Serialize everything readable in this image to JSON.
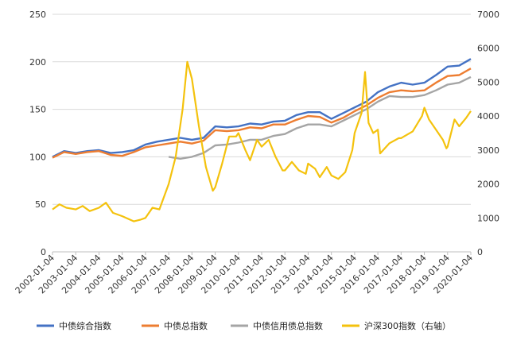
{
  "chart_data": {
    "type": "line",
    "y_left": {
      "ticks": [
        "0",
        "50",
        "100",
        "150",
        "200",
        "250"
      ],
      "lim": [
        0,
        250
      ]
    },
    "y_right": {
      "ticks": [
        "0",
        "1000",
        "2000",
        "3000",
        "4000",
        "5000",
        "6000",
        "7000"
      ],
      "lim": [
        0,
        7000
      ]
    },
    "x_ticks": [
      "2002-01-04",
      "2003-01-04",
      "2004-01-04",
      "2005-01-04",
      "2006-01-04",
      "2007-01-04",
      "2008-01-04",
      "2009-01-04",
      "2010-01-04",
      "2011-01-04",
      "2012-01-04",
      "2013-01-04",
      "2014-01-04",
      "2015-01-04",
      "2016-01-04",
      "2017-01-04",
      "2018-01-04",
      "2019-01-04",
      "2020-01-04"
    ],
    "grid": "horizontal",
    "legend_position": "bottom",
    "series": [
      {
        "name": "中债综合指数",
        "color": "#4472C4",
        "axis": "left",
        "points": [
          [
            2002.0,
            100
          ],
          [
            2002.5,
            106
          ],
          [
            2003.0,
            104
          ],
          [
            2003.5,
            106
          ],
          [
            2004.0,
            107
          ],
          [
            2004.5,
            104
          ],
          [
            2005.0,
            105
          ],
          [
            2005.5,
            107
          ],
          [
            2006.0,
            113
          ],
          [
            2006.5,
            116
          ],
          [
            2007.0,
            118
          ],
          [
            2007.5,
            120
          ],
          [
            2008.0,
            118
          ],
          [
            2008.5,
            120
          ],
          [
            2009.0,
            132
          ],
          [
            2009.5,
            131
          ],
          [
            2010.0,
            132
          ],
          [
            2010.5,
            135
          ],
          [
            2011.0,
            134
          ],
          [
            2011.5,
            137
          ],
          [
            2012.0,
            138
          ],
          [
            2012.5,
            144
          ],
          [
            2013.0,
            147
          ],
          [
            2013.5,
            147
          ],
          [
            2014.0,
            140
          ],
          [
            2014.5,
            146
          ],
          [
            2015.0,
            152
          ],
          [
            2015.5,
            158
          ],
          [
            2016.0,
            168
          ],
          [
            2016.5,
            174
          ],
          [
            2017.0,
            178
          ],
          [
            2017.5,
            176
          ],
          [
            2018.0,
            178
          ],
          [
            2018.5,
            186
          ],
          [
            2019.0,
            195
          ],
          [
            2019.5,
            196
          ],
          [
            2020.0,
            203
          ]
        ]
      },
      {
        "name": "中债总指数",
        "color": "#ED7D31",
        "axis": "left",
        "points": [
          [
            2002.0,
            99
          ],
          [
            2002.5,
            105
          ],
          [
            2003.0,
            103
          ],
          [
            2003.5,
            105
          ],
          [
            2004.0,
            106
          ],
          [
            2004.5,
            102
          ],
          [
            2005.0,
            101
          ],
          [
            2005.5,
            105
          ],
          [
            2006.0,
            110
          ],
          [
            2006.5,
            112
          ],
          [
            2007.0,
            114
          ],
          [
            2007.5,
            116
          ],
          [
            2008.0,
            114
          ],
          [
            2008.5,
            117
          ],
          [
            2009.0,
            128
          ],
          [
            2009.5,
            127
          ],
          [
            2010.0,
            128
          ],
          [
            2010.5,
            131
          ],
          [
            2011.0,
            130
          ],
          [
            2011.5,
            134
          ],
          [
            2012.0,
            134
          ],
          [
            2012.5,
            139
          ],
          [
            2013.0,
            143
          ],
          [
            2013.5,
            142
          ],
          [
            2014.0,
            136
          ],
          [
            2014.5,
            141
          ],
          [
            2015.0,
            148
          ],
          [
            2015.5,
            154
          ],
          [
            2016.0,
            162
          ],
          [
            2016.5,
            168
          ],
          [
            2017.0,
            170
          ],
          [
            2017.5,
            169
          ],
          [
            2018.0,
            170
          ],
          [
            2018.5,
            178
          ],
          [
            2019.0,
            185
          ],
          [
            2019.5,
            186
          ],
          [
            2020.0,
            193
          ]
        ]
      },
      {
        "name": "中债信用债总指数",
        "color": "#A5A5A5",
        "axis": "left",
        "points": [
          [
            2007.0,
            100
          ],
          [
            2007.5,
            98
          ],
          [
            2008.0,
            100
          ],
          [
            2008.5,
            104
          ],
          [
            2009.0,
            112
          ],
          [
            2009.5,
            113
          ],
          [
            2010.0,
            115
          ],
          [
            2010.5,
            118
          ],
          [
            2011.0,
            118
          ],
          [
            2011.5,
            122
          ],
          [
            2012.0,
            124
          ],
          [
            2012.5,
            130
          ],
          [
            2013.0,
            134
          ],
          [
            2013.5,
            134
          ],
          [
            2014.0,
            132
          ],
          [
            2014.5,
            138
          ],
          [
            2015.0,
            144
          ],
          [
            2015.5,
            150
          ],
          [
            2016.0,
            158
          ],
          [
            2016.5,
            164
          ],
          [
            2017.0,
            163
          ],
          [
            2017.5,
            163
          ],
          [
            2018.0,
            165
          ],
          [
            2018.5,
            170
          ],
          [
            2019.0,
            176
          ],
          [
            2019.5,
            178
          ],
          [
            2020.0,
            184
          ]
        ]
      },
      {
        "name": "沪深300指数（右轴）",
        "color": "#F4C20D",
        "axis": "right",
        "points": [
          [
            2002.0,
            1250
          ],
          [
            2002.3,
            1400
          ],
          [
            2002.6,
            1300
          ],
          [
            2003.0,
            1250
          ],
          [
            2003.3,
            1350
          ],
          [
            2003.6,
            1200
          ],
          [
            2004.0,
            1300
          ],
          [
            2004.3,
            1450
          ],
          [
            2004.6,
            1150
          ],
          [
            2005.0,
            1050
          ],
          [
            2005.5,
            900
          ],
          [
            2005.8,
            950
          ],
          [
            2006.0,
            1000
          ],
          [
            2006.3,
            1300
          ],
          [
            2006.6,
            1250
          ],
          [
            2007.0,
            2000
          ],
          [
            2007.3,
            2800
          ],
          [
            2007.6,
            4200
          ],
          [
            2007.8,
            5600
          ],
          [
            2008.0,
            5100
          ],
          [
            2008.3,
            3700
          ],
          [
            2008.6,
            2500
          ],
          [
            2008.9,
            1800
          ],
          [
            2009.0,
            1900
          ],
          [
            2009.3,
            2600
          ],
          [
            2009.6,
            3400
          ],
          [
            2009.9,
            3400
          ],
          [
            2010.0,
            3500
          ],
          [
            2010.3,
            3000
          ],
          [
            2010.5,
            2700
          ],
          [
            2010.8,
            3300
          ],
          [
            2011.0,
            3100
          ],
          [
            2011.3,
            3300
          ],
          [
            2011.6,
            2800
          ],
          [
            2011.9,
            2400
          ],
          [
            2012.0,
            2400
          ],
          [
            2012.3,
            2650
          ],
          [
            2012.6,
            2400
          ],
          [
            2012.9,
            2300
          ],
          [
            2013.0,
            2600
          ],
          [
            2013.3,
            2450
          ],
          [
            2013.5,
            2200
          ],
          [
            2013.8,
            2500
          ],
          [
            2014.0,
            2250
          ],
          [
            2014.3,
            2150
          ],
          [
            2014.6,
            2350
          ],
          [
            2014.9,
            3000
          ],
          [
            2015.0,
            3500
          ],
          [
            2015.3,
            4100
          ],
          [
            2015.45,
            5300
          ],
          [
            2015.6,
            3800
          ],
          [
            2015.8,
            3500
          ],
          [
            2016.0,
            3600
          ],
          [
            2016.1,
            2900
          ],
          [
            2016.5,
            3200
          ],
          [
            2016.9,
            3350
          ],
          [
            2017.0,
            3350
          ],
          [
            2017.5,
            3550
          ],
          [
            2017.9,
            4000
          ],
          [
            2018.0,
            4250
          ],
          [
            2018.2,
            3900
          ],
          [
            2018.5,
            3600
          ],
          [
            2018.8,
            3300
          ],
          [
            2018.95,
            3050
          ],
          [
            2019.0,
            3100
          ],
          [
            2019.3,
            3900
          ],
          [
            2019.5,
            3700
          ],
          [
            2019.8,
            3950
          ],
          [
            2020.0,
            4150
          ]
        ]
      }
    ]
  }
}
